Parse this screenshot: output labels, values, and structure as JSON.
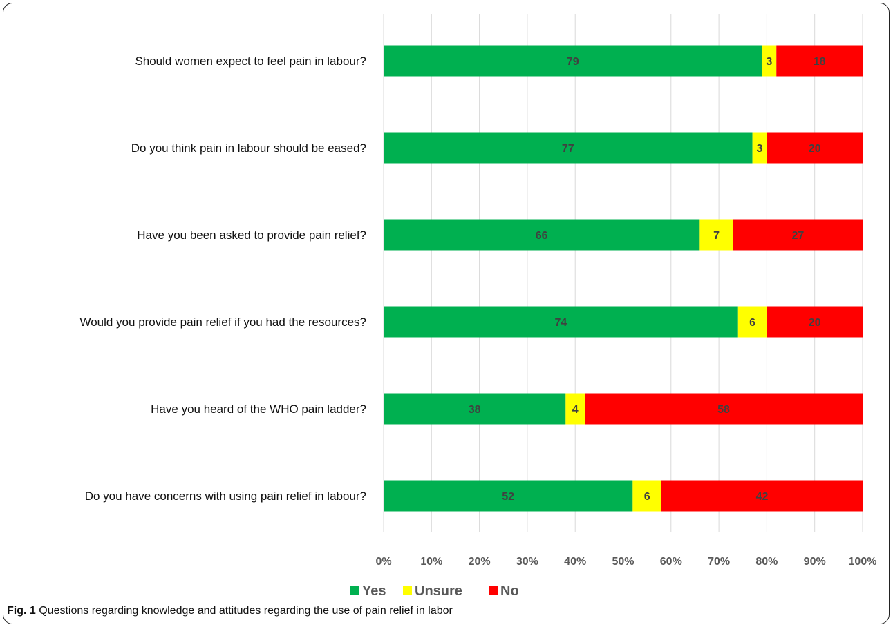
{
  "caption": {
    "label": "Fig. 1",
    "text": "Questions regarding knowledge and attitudes regarding the use of pain relief in labor"
  },
  "colors": {
    "Yes": "#00b050",
    "Unsure": "#ffff00",
    "No": "#ff0000",
    "grid": "#d9d9d9",
    "tick_text": "#595959",
    "data_label": "#404040"
  },
  "chart_data": {
    "type": "bar",
    "orientation": "horizontal",
    "stacked": "percent",
    "categories": [
      "Should women expect to feel pain in labour?",
      "Do you think pain in labour should be eased?",
      "Have you been asked to provide pain relief?",
      "Would you provide pain relief if you had the resources?",
      "Have you heard of the WHO pain ladder?",
      "Do you have concerns with using pain relief in labour?"
    ],
    "series": [
      {
        "name": "Yes",
        "values": [
          79,
          77,
          66,
          74,
          38,
          52
        ]
      },
      {
        "name": "Unsure",
        "values": [
          3,
          3,
          7,
          6,
          4,
          6
        ]
      },
      {
        "name": "No",
        "values": [
          18,
          20,
          27,
          20,
          58,
          42
        ]
      }
    ],
    "xlim": [
      0,
      100
    ],
    "x_ticks": [
      "0%",
      "10%",
      "20%",
      "30%",
      "40%",
      "50%",
      "60%",
      "70%",
      "80%",
      "90%",
      "100%"
    ],
    "grid": true,
    "legend_position": "bottom",
    "data_labels": true
  }
}
